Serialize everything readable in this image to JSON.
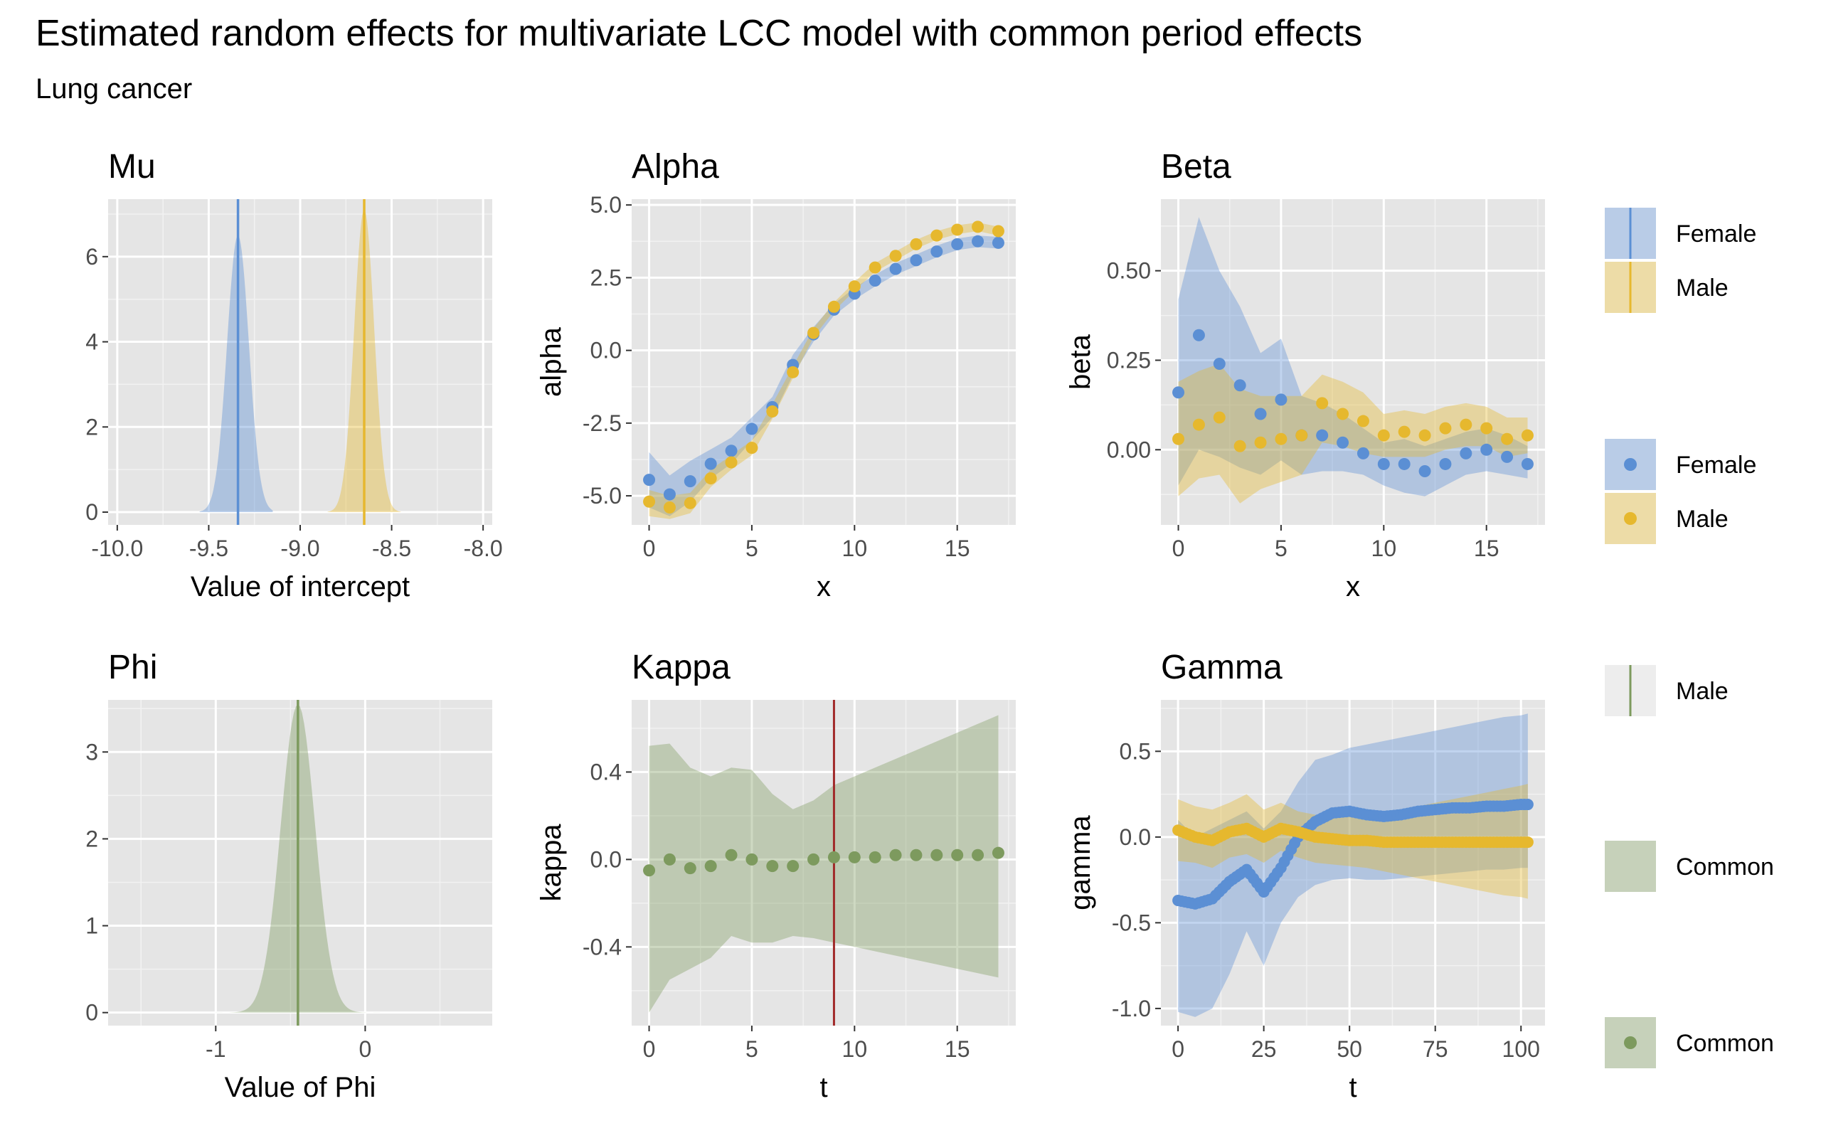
{
  "title": "Estimated random effects for multivariate LCC model with common period effects",
  "subtitle": "Lung cancer",
  "colors": {
    "female": "#5b8fd4",
    "male": "#e6b82e",
    "common": "#7d9a5e",
    "kappa_line": "#a12a2a",
    "panel_bg": "#e5e5e5",
    "grid": "#ffffff"
  },
  "legends": [
    {
      "kind": "line-fill",
      "items": [
        {
          "label": "Female",
          "color": "#5b8fd4"
        },
        {
          "label": "Male",
          "color": "#e6b82e"
        }
      ]
    },
    {
      "kind": "point-fill",
      "items": [
        {
          "label": "Female",
          "color": "#5b8fd4"
        },
        {
          "label": "Male",
          "color": "#e6b82e"
        }
      ]
    },
    {
      "kind": "line-fill-light",
      "items": [
        {
          "label": "Male",
          "color": "#7d9a5e"
        }
      ]
    },
    {
      "kind": "fill",
      "items": [
        {
          "label": "Common",
          "color": "#7d9a5e"
        }
      ]
    },
    {
      "kind": "point-fill",
      "items": [
        {
          "label": "Common",
          "color": "#7d9a5e"
        }
      ]
    }
  ],
  "chart_data": [
    {
      "id": "mu",
      "type": "area",
      "panel_title": "Mu",
      "xlabel": "Value of intercept",
      "ylabel": "",
      "xlim": [
        -10.05,
        -7.95
      ],
      "ylim": [
        -0.3,
        7.35
      ],
      "xticks": [
        -10.0,
        -9.5,
        -9.0,
        -8.5,
        -8.0
      ],
      "xtick_labels": [
        "-10.0",
        "-9.5",
        "-9.0",
        "-8.5",
        "-8.0"
      ],
      "yticks": [
        0,
        2,
        4,
        6
      ],
      "ytick_labels": [
        "0",
        "2",
        "4",
        "6"
      ],
      "densities": [
        {
          "series": "Female",
          "mean": -9.34,
          "sd": 0.06,
          "peak": 6.5,
          "from": -9.55,
          "to": -9.15,
          "vline": -9.34
        },
        {
          "series": "Male",
          "mean": -8.65,
          "sd": 0.055,
          "peak": 7.1,
          "from": -8.85,
          "to": -8.45,
          "vline": -8.65
        }
      ]
    },
    {
      "id": "alpha",
      "type": "scatter",
      "panel_title": "Alpha",
      "xlabel": "x",
      "ylabel": "alpha",
      "xlim": [
        -0.85,
        17.85
      ],
      "ylim": [
        -6.0,
        5.2
      ],
      "xticks": [
        0,
        5,
        10,
        15
      ],
      "xtick_labels": [
        "0",
        "5",
        "10",
        "15"
      ],
      "yticks": [
        -5.0,
        -2.5,
        0.0,
        2.5,
        5.0
      ],
      "ytick_labels": [
        "-5.0",
        "-2.5",
        "0.0",
        "2.5",
        "5.0"
      ],
      "x": [
        0,
        1,
        2,
        3,
        4,
        5,
        6,
        7,
        8,
        9,
        10,
        11,
        12,
        13,
        14,
        15,
        16,
        17
      ],
      "series": [
        {
          "name": "Female",
          "values": [
            -4.45,
            -4.95,
            -4.5,
            -3.9,
            -3.45,
            -2.7,
            -1.95,
            -0.5,
            0.55,
            1.4,
            1.95,
            2.4,
            2.8,
            3.1,
            3.4,
            3.65,
            3.75,
            3.7
          ],
          "lower": [
            -5.4,
            -5.7,
            -5.2,
            -4.4,
            -3.9,
            -3.1,
            -2.3,
            -0.85,
            0.3,
            1.2,
            1.75,
            2.2,
            2.6,
            2.9,
            3.2,
            3.45,
            3.55,
            3.5
          ],
          "upper": [
            -3.5,
            -4.3,
            -3.8,
            -3.4,
            -3.0,
            -2.3,
            -1.6,
            -0.15,
            0.8,
            1.6,
            2.15,
            2.6,
            3.0,
            3.3,
            3.6,
            3.85,
            3.95,
            3.9
          ]
        },
        {
          "name": "Male",
          "values": [
            -5.2,
            -5.4,
            -5.25,
            -4.4,
            -3.85,
            -3.35,
            -2.1,
            -0.75,
            0.6,
            1.5,
            2.2,
            2.85,
            3.25,
            3.65,
            3.95,
            4.15,
            4.25,
            4.1
          ],
          "lower": [
            -5.7,
            -5.8,
            -5.6,
            -4.7,
            -4.1,
            -3.6,
            -2.35,
            -0.95,
            0.45,
            1.35,
            2.05,
            2.7,
            3.1,
            3.5,
            3.8,
            4.0,
            4.1,
            3.95
          ],
          "upper": [
            -4.8,
            -5.0,
            -4.9,
            -4.1,
            -3.6,
            -3.1,
            -1.85,
            -0.55,
            0.75,
            1.65,
            2.35,
            3.0,
            3.4,
            3.8,
            4.1,
            4.3,
            4.4,
            4.25
          ]
        }
      ]
    },
    {
      "id": "beta",
      "type": "scatter",
      "panel_title": "Beta",
      "xlabel": "x",
      "ylabel": "beta",
      "xlim": [
        -0.85,
        17.85
      ],
      "ylim": [
        -0.21,
        0.7
      ],
      "xticks": [
        0,
        5,
        10,
        15
      ],
      "xtick_labels": [
        "0",
        "5",
        "10",
        "15"
      ],
      "yticks": [
        0.0,
        0.25,
        0.5
      ],
      "ytick_labels": [
        "0.00",
        "0.25",
        "0.50"
      ],
      "x": [
        0,
        1,
        2,
        3,
        4,
        5,
        6,
        7,
        8,
        9,
        10,
        11,
        12,
        13,
        14,
        15,
        16,
        17
      ],
      "series": [
        {
          "name": "Female",
          "values": [
            0.16,
            0.32,
            0.24,
            0.18,
            0.1,
            0.14,
            0.04,
            0.04,
            0.02,
            -0.01,
            -0.04,
            -0.04,
            -0.06,
            -0.04,
            -0.01,
            0.0,
            -0.02,
            -0.04
          ],
          "lower": [
            -0.1,
            0.0,
            -0.02,
            -0.05,
            -0.07,
            -0.03,
            -0.07,
            -0.06,
            -0.06,
            -0.07,
            -0.1,
            -0.12,
            -0.13,
            -0.1,
            -0.07,
            -0.06,
            -0.07,
            -0.08
          ],
          "upper": [
            0.42,
            0.65,
            0.5,
            0.4,
            0.27,
            0.31,
            0.15,
            0.13,
            0.1,
            0.06,
            0.02,
            0.03,
            0.01,
            0.03,
            0.05,
            0.06,
            0.04,
            0.01
          ]
        },
        {
          "name": "Male",
          "values": [
            0.03,
            0.07,
            0.09,
            0.01,
            0.02,
            0.03,
            0.04,
            0.13,
            0.1,
            0.08,
            0.04,
            0.05,
            0.04,
            0.06,
            0.07,
            0.06,
            0.03,
            0.04
          ],
          "lower": [
            -0.13,
            -0.08,
            -0.07,
            -0.15,
            -0.11,
            -0.09,
            -0.07,
            0.02,
            0.01,
            -0.01,
            -0.02,
            -0.02,
            -0.02,
            0.0,
            0.01,
            0.01,
            -0.02,
            -0.01
          ],
          "upper": [
            0.19,
            0.22,
            0.24,
            0.17,
            0.15,
            0.15,
            0.15,
            0.21,
            0.19,
            0.16,
            0.1,
            0.11,
            0.1,
            0.12,
            0.13,
            0.12,
            0.09,
            0.09
          ]
        }
      ]
    },
    {
      "id": "phi",
      "type": "area",
      "panel_title": "Phi",
      "xlabel": "Value of Phi",
      "ylabel": "",
      "xlim": [
        -1.72,
        0.85
      ],
      "ylim": [
        -0.15,
        3.6
      ],
      "xticks": [
        -1,
        0
      ],
      "xtick_labels": [
        "-1",
        "0"
      ],
      "yticks": [
        0,
        1,
        2,
        3
      ],
      "ytick_labels": [
        "0",
        "1",
        "2",
        "3"
      ],
      "densities": [
        {
          "series": "Common",
          "mean": -0.45,
          "sd": 0.115,
          "peak": 3.55,
          "from": -1.0,
          "to": 0.1,
          "vline": -0.45
        }
      ]
    },
    {
      "id": "kappa",
      "type": "scatter",
      "panel_title": "Kappa",
      "xlabel": "t",
      "ylabel": "kappa",
      "xlim": [
        -0.85,
        17.85
      ],
      "ylim": [
        -0.76,
        0.73
      ],
      "xticks": [
        0,
        5,
        10,
        15
      ],
      "xtick_labels": [
        "0",
        "5",
        "10",
        "15"
      ],
      "yticks": [
        -0.4,
        0.0,
        0.4
      ],
      "ytick_labels": [
        "-0.4",
        "0.0",
        "0.4"
      ],
      "vline": 9,
      "x": [
        0,
        1,
        2,
        3,
        4,
        5,
        6,
        7,
        8,
        9,
        10,
        11,
        12,
        13,
        14,
        15,
        16,
        17
      ],
      "series": [
        {
          "name": "Common",
          "values": [
            -0.05,
            0.0,
            -0.04,
            -0.03,
            0.02,
            0.0,
            -0.03,
            -0.03,
            0.0,
            0.01,
            0.01,
            0.01,
            0.02,
            0.02,
            0.02,
            0.02,
            0.02,
            0.03
          ],
          "lower": [
            -0.7,
            -0.55,
            -0.5,
            -0.45,
            -0.35,
            -0.38,
            -0.38,
            -0.35,
            -0.36,
            -0.38,
            -0.4,
            -0.42,
            -0.44,
            -0.46,
            -0.48,
            -0.5,
            -0.52,
            -0.54
          ],
          "upper": [
            0.52,
            0.53,
            0.42,
            0.38,
            0.42,
            0.41,
            0.3,
            0.23,
            0.27,
            0.34,
            0.38,
            0.42,
            0.46,
            0.5,
            0.54,
            0.58,
            0.62,
            0.66
          ]
        }
      ]
    },
    {
      "id": "gamma",
      "type": "line",
      "panel_title": "Gamma",
      "xlabel": "t",
      "ylabel": "gamma",
      "xlim": [
        -5,
        107
      ],
      "ylim": [
        -1.1,
        0.8
      ],
      "xticks": [
        0,
        25,
        50,
        75,
        100
      ],
      "xtick_labels": [
        "0",
        "25",
        "50",
        "75",
        "100"
      ],
      "yticks": [
        -1.0,
        -0.5,
        0.0,
        0.5
      ],
      "ytick_labels": [
        "-1.0",
        "-0.5",
        "0.0",
        "0.5"
      ],
      "x": [
        0,
        5,
        10,
        15,
        20,
        25,
        30,
        35,
        40,
        45,
        50,
        55,
        60,
        65,
        70,
        75,
        80,
        85,
        90,
        95,
        100,
        102
      ],
      "series": [
        {
          "name": "Female",
          "values": [
            -0.37,
            -0.39,
            -0.36,
            -0.26,
            -0.19,
            -0.32,
            -0.18,
            0.0,
            0.09,
            0.14,
            0.15,
            0.13,
            0.12,
            0.13,
            0.15,
            0.16,
            0.17,
            0.17,
            0.18,
            0.18,
            0.19,
            0.19
          ],
          "lower": [
            -1.02,
            -1.05,
            -1.0,
            -0.8,
            -0.55,
            -0.75,
            -0.5,
            -0.35,
            -0.28,
            -0.25,
            -0.24,
            -0.25,
            -0.25,
            -0.24,
            -0.23,
            -0.22,
            -0.21,
            -0.2,
            -0.19,
            -0.19,
            -0.18,
            -0.18
          ],
          "upper": [
            0.1,
            0.0,
            0.05,
            0.1,
            0.15,
            0.05,
            0.15,
            0.32,
            0.45,
            0.48,
            0.52,
            0.54,
            0.56,
            0.58,
            0.6,
            0.62,
            0.64,
            0.66,
            0.68,
            0.7,
            0.71,
            0.72
          ]
        },
        {
          "name": "Male",
          "values": [
            0.04,
            0.0,
            -0.02,
            0.03,
            0.05,
            0.0,
            0.05,
            0.03,
            0.0,
            -0.01,
            -0.02,
            -0.02,
            -0.03,
            -0.03,
            -0.03,
            -0.03,
            -0.03,
            -0.03,
            -0.03,
            -0.03,
            -0.03,
            -0.03
          ],
          "lower": [
            -0.14,
            -0.15,
            -0.18,
            -0.12,
            -0.1,
            -0.15,
            -0.08,
            -0.12,
            -0.15,
            -0.16,
            -0.17,
            -0.18,
            -0.2,
            -0.22,
            -0.24,
            -0.26,
            -0.28,
            -0.3,
            -0.32,
            -0.34,
            -0.35,
            -0.36
          ],
          "upper": [
            0.22,
            0.18,
            0.16,
            0.2,
            0.25,
            0.16,
            0.2,
            0.15,
            0.13,
            0.12,
            0.12,
            0.13,
            0.14,
            0.16,
            0.18,
            0.2,
            0.22,
            0.24,
            0.26,
            0.28,
            0.3,
            0.31
          ]
        }
      ]
    }
  ]
}
